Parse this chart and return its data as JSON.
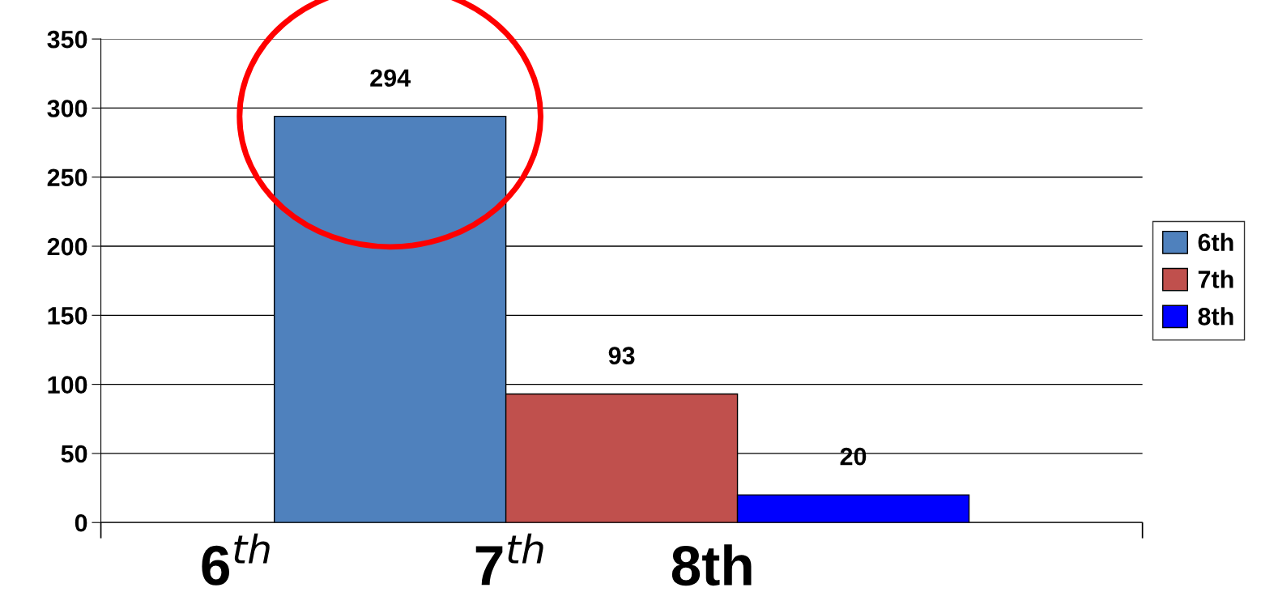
{
  "chart_data": {
    "type": "bar",
    "categories": [
      null
    ],
    "series": [
      {
        "name": "6th",
        "color": "#4f81bd",
        "values": [
          294
        ]
      },
      {
        "name": "7th",
        "color": "#c0504d",
        "values": [
          93
        ]
      },
      {
        "name": "8th",
        "color": "#0000ff",
        "values": [
          20
        ]
      }
    ],
    "ylim": [
      0,
      350
    ],
    "yticks": [
      0,
      50,
      100,
      150,
      200,
      250,
      300,
      350
    ],
    "grid": "y",
    "legend": "right",
    "data_labels": true,
    "annotations": [
      "6$^{th}$",
      "7$^{th}$",
      "8th"
    ]
  }
}
